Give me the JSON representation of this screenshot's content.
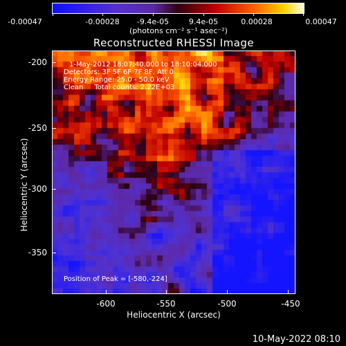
{
  "colorbar": {
    "ticks": [
      "-0.00047",
      "-0.00028",
      "-9.4e-05",
      "9.4e-05",
      "0.00028",
      "0.00047"
    ],
    "unit": "(photons cm⁻² s⁻¹ asec⁻²)"
  },
  "title": "Reconstructed RHESSI Image",
  "info": {
    "line1": "1-May-2012 18:07:40.000 to 18:10:04.000",
    "line2": "Detectors: 3F 5F 6F 7F 8F, Att 0",
    "line3": "Energy Range: 25.0 - 50.0 keV",
    "line4": "Clean     Total counts: 2.22E+03"
  },
  "peak": "Position of Peak = [-580,-224]",
  "axes": {
    "xlabel": "Heliocentric X (arcsec)",
    "ylabel": "Heliocentric Y (arcsec)",
    "xticks": [
      "-600",
      "-550",
      "-500",
      "-450"
    ],
    "yticks": [
      "-200",
      "-250",
      "-300",
      "-350"
    ]
  },
  "footer": "10-May-2022 08:10",
  "colors": {
    "background": "#000000",
    "colormap_low": "#1a1aff",
    "colormap_mid": "#6a1fb0",
    "colormap_high": "#ffffe0"
  }
}
